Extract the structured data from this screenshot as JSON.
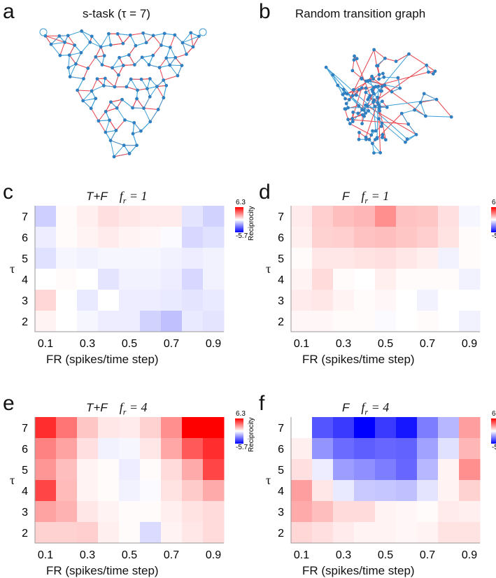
{
  "panels": {
    "a": {
      "letter": "a",
      "title": "s-task (τ = 7)"
    },
    "b": {
      "letter": "b",
      "title": "Random transition graph"
    },
    "c": {
      "letter": "c",
      "title_prefix": "T+F",
      "title_f": "f",
      "title_sub": "r",
      "title_val": "= 1"
    },
    "d": {
      "letter": "d",
      "title_prefix": "F",
      "title_f": "f",
      "title_sub": "r",
      "title_val": "= 1"
    },
    "e": {
      "letter": "e",
      "title_prefix": "T+F",
      "title_f": "f",
      "title_sub": "r",
      "title_val": "= 4"
    },
    "f": {
      "letter": "f",
      "title_prefix": "F",
      "title_f": "f",
      "title_sub": "r",
      "title_val": "= 4"
    }
  },
  "common": {
    "xlabel": "FR (spikes/time step)",
    "ylabel": "τ",
    "xticks": [
      "0.1",
      "0.3",
      "0.5",
      "0.7",
      "0.9"
    ],
    "yticks": [
      "7",
      "6",
      "5",
      "4",
      "3",
      "2"
    ],
    "colorbar": {
      "max": "6.3",
      "min": "-5.7",
      "title": "Reciprocity"
    },
    "colors": {
      "positive": "#ff0000",
      "negative": "#0000ff",
      "neutral": "#ffffff",
      "edge_red": "#e8434a",
      "edge_blue": "#3a9fd8",
      "node": "#2f7fc1"
    }
  },
  "chart_data": [
    {
      "panel": "c",
      "type": "heatmap",
      "title": "T+F f_r = 1",
      "xlabel": "FR (spikes/time step)",
      "ylabel": "τ",
      "x": [
        0.1,
        0.2,
        0.3,
        0.4,
        0.5,
        0.6,
        0.7,
        0.8,
        0.9
      ],
      "y": [
        7,
        6,
        5,
        4,
        3,
        2
      ],
      "zlim": [
        -5.7,
        6.3
      ],
      "values": [
        [
          -1.1,
          0.1,
          0.4,
          0.8,
          0.6,
          0.5,
          0.5,
          -0.6,
          -1.0
        ],
        [
          -0.4,
          0.1,
          0.3,
          0.5,
          0.3,
          0.2,
          -0.1,
          -0.9,
          -0.7
        ],
        [
          -0.7,
          -0.2,
          -0.3,
          -0.2,
          -0.2,
          -0.2,
          -0.3,
          -0.4,
          -0.3
        ],
        [
          0.0,
          0.1,
          0.0,
          -0.6,
          -0.3,
          -0.3,
          -0.4,
          -0.9,
          -0.3
        ],
        [
          1.0,
          0.0,
          -0.5,
          0.0,
          -0.4,
          -0.4,
          -0.5,
          -0.6,
          -0.5
        ],
        [
          0.3,
          0.0,
          -0.2,
          -0.4,
          -0.4,
          -1.0,
          -1.4,
          -0.5,
          -0.6
        ]
      ]
    },
    {
      "panel": "d",
      "type": "heatmap",
      "title": "F f_r = 1",
      "xlabel": "FR (spikes/time step)",
      "ylabel": "τ",
      "x": [
        0.1,
        0.2,
        0.3,
        0.4,
        0.5,
        0.6,
        0.7,
        0.8,
        0.9
      ],
      "y": [
        7,
        6,
        5,
        4,
        3,
        2
      ],
      "zlim": [
        -5.7,
        6.3
      ],
      "values": [
        [
          0.5,
          1.2,
          1.6,
          1.8,
          2.8,
          1.5,
          1.4,
          0.8,
          -0.2
        ],
        [
          0.4,
          1.1,
          1.2,
          1.5,
          1.6,
          1.4,
          1.2,
          0.7,
          0.1
        ],
        [
          0.1,
          0.6,
          0.6,
          0.7,
          0.8,
          0.6,
          0.4,
          -0.3,
          0.1
        ],
        [
          0.3,
          0.9,
          0.1,
          0.0,
          0.4,
          0.1,
          0.1,
          0.1,
          -0.3
        ],
        [
          0.5,
          0.6,
          0.3,
          0.1,
          0.2,
          0.0,
          -0.3,
          0.0,
          0.0
        ],
        [
          0.2,
          0.2,
          0.1,
          0.1,
          -0.1,
          0.0,
          0.1,
          0.0,
          -0.3
        ]
      ]
    },
    {
      "panel": "e",
      "type": "heatmap",
      "title": "T+F f_r = 4",
      "xlabel": "FR (spikes/time step)",
      "ylabel": "τ",
      "x": [
        0.1,
        0.2,
        0.3,
        0.4,
        0.5,
        0.6,
        0.7,
        0.8,
        0.9
      ],
      "y": [
        7,
        6,
        5,
        4,
        3,
        2
      ],
      "zlim": [
        -5.7,
        6.3
      ],
      "values": [
        [
          5.2,
          3.4,
          1.4,
          0.6,
          0.5,
          1.1,
          2.8,
          6.3,
          6.3
        ],
        [
          3.1,
          2.3,
          0.8,
          -0.3,
          -0.2,
          0.6,
          2.2,
          4.1,
          5.2
        ],
        [
          2.6,
          1.6,
          0.3,
          0.1,
          -0.4,
          0.1,
          0.9,
          2.1,
          4.6
        ],
        [
          4.6,
          1.7,
          0.3,
          0.1,
          -0.3,
          -0.1,
          0.7,
          1.3,
          2.1
        ],
        [
          2.3,
          1.9,
          0.6,
          0.3,
          0.1,
          0.1,
          0.4,
          0.7,
          0.9
        ],
        [
          1.1,
          1.1,
          1.2,
          0.4,
          0.1,
          -0.8,
          0.3,
          0.6,
          0.9
        ]
      ]
    },
    {
      "panel": "f",
      "type": "heatmap",
      "title": "F f_r = 4",
      "xlabel": "FR (spikes/time step)",
      "ylabel": "τ",
      "x": [
        0.1,
        0.2,
        0.3,
        0.4,
        0.5,
        0.6,
        0.7,
        0.8,
        0.9
      ],
      "y": [
        7,
        6,
        5,
        4,
        3,
        2
      ],
      "zlim": [
        -5.7,
        6.3
      ],
      "values": [
        [
          0.0,
          -3.8,
          -4.4,
          -5.7,
          -4.4,
          -5.2,
          -2.9,
          -1.6,
          2.4
        ],
        [
          0.4,
          -2.4,
          -3.3,
          -3.6,
          -3.4,
          -3.5,
          -2.1,
          -0.7,
          1.8
        ],
        [
          0.8,
          -0.4,
          -2.2,
          -2.5,
          -2.9,
          -3.4,
          -1.6,
          0.3,
          2.8
        ],
        [
          2.4,
          0.6,
          -0.5,
          -1.2,
          -1.3,
          -1.4,
          -0.6,
          0.3,
          1.1
        ],
        [
          2.1,
          1.6,
          0.9,
          0.9,
          0.3,
          0.2,
          0.1,
          0.5,
          0.4
        ],
        [
          1.0,
          0.8,
          0.5,
          0.3,
          0.3,
          0.2,
          0.3,
          0.7,
          0.7
        ]
      ]
    }
  ]
}
